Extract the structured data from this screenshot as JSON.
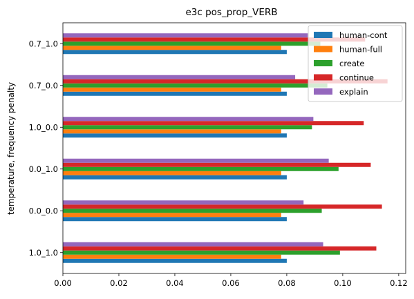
{
  "chart_data": {
    "type": "bar",
    "orientation": "horizontal",
    "title": "e3c pos_prop_VERB",
    "xlabel": "",
    "ylabel": "temperature, frequency penalty",
    "categories": [
      "1.0_1.0",
      "0.0_0.0",
      "0.0_1.0",
      "1.0_0.0",
      "0.7_0.0",
      "0.7_1.0"
    ],
    "series": [
      {
        "name": "human-cont",
        "color": "#1f77b4",
        "values": [
          0.08,
          0.08,
          0.08,
          0.08,
          0.08,
          0.08
        ]
      },
      {
        "name": "human-full",
        "color": "#ff7f0e",
        "values": [
          0.078,
          0.078,
          0.078,
          0.078,
          0.078,
          0.078
        ]
      },
      {
        "name": "create",
        "color": "#2ca02c",
        "values": [
          0.099,
          0.0925,
          0.0985,
          0.089,
          0.0945,
          0.092
        ]
      },
      {
        "name": "continue",
        "color": "#d62728",
        "values": [
          0.112,
          0.114,
          0.11,
          0.1075,
          0.116,
          0.108
        ]
      },
      {
        "name": "explain",
        "color": "#9467bd",
        "values": [
          0.093,
          0.086,
          0.095,
          0.0895,
          0.083,
          0.0875
        ]
      }
    ],
    "xlim": [
      0,
      0.1225
    ],
    "xticks": [
      "0.00",
      "0.02",
      "0.04",
      "0.06",
      "0.08",
      "0.10",
      "0.12"
    ],
    "xtick_values": [
      0,
      0.02,
      0.04,
      0.06,
      0.08,
      0.1,
      0.12
    ],
    "grid": false,
    "legend_position": "top-right"
  }
}
